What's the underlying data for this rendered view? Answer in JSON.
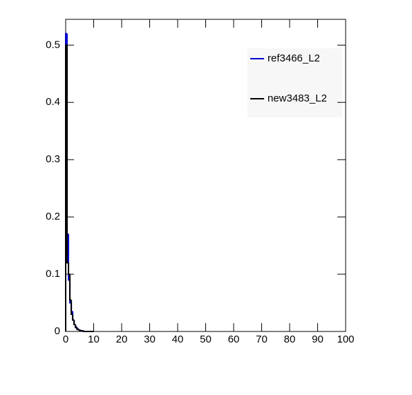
{
  "chart_data": {
    "type": "histogram",
    "bins": [
      0,
      0.5,
      1,
      1.5,
      2,
      2.5,
      3,
      3.5,
      4,
      4.5,
      5,
      5.5,
      6,
      6.5,
      7,
      7.5,
      8,
      8.5,
      9,
      9.5,
      10
    ],
    "series": [
      {
        "name": "ref3466_L2",
        "color": "#0000cc",
        "values": [
          0.52,
          0.17,
          0.09,
          0.05,
          0.035,
          0.02,
          0.012,
          0.008,
          0.005,
          0.003,
          0.002,
          0.001,
          0.001,
          0,
          0,
          0,
          0,
          0,
          0,
          0
        ]
      },
      {
        "name": "new3483_L2",
        "color": "#000000",
        "values": [
          0.5,
          0.12,
          0.1,
          0.055,
          0.03,
          0.02,
          0.012,
          0.007,
          0.004,
          0.003,
          0.002,
          0.001,
          0.001,
          0,
          0,
          0,
          0,
          0,
          0,
          0
        ]
      }
    ],
    "xlim": [
      0,
      100
    ],
    "xticks": [
      0,
      10,
      20,
      30,
      40,
      50,
      60,
      70,
      80,
      90,
      100
    ],
    "ylim": [
      0,
      0.545
    ],
    "yticks": [
      0,
      0.1,
      0.2,
      0.3,
      0.4,
      0.5
    ]
  }
}
